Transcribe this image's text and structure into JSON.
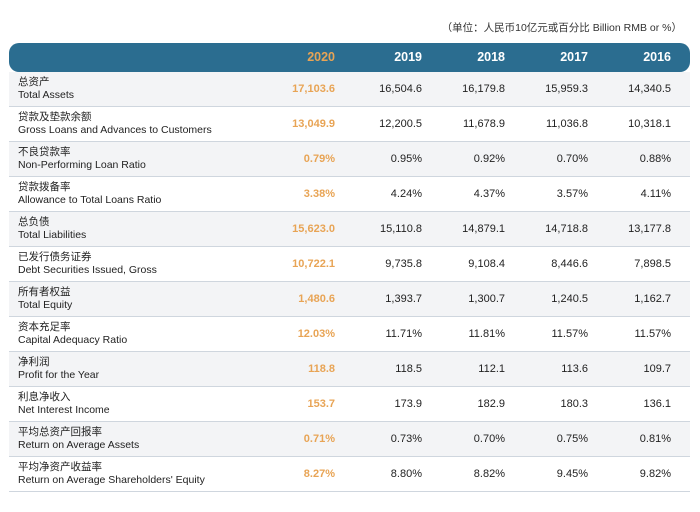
{
  "unit_note": "（单位：人民币10亿元或百分比 Billion RMB or %）",
  "header": {
    "years": [
      "2020",
      "2019",
      "2018",
      "2017",
      "2016"
    ]
  },
  "rows": [
    {
      "zh": "总资产",
      "en": "Total Assets",
      "values": [
        "17,103.6",
        "16,504.6",
        "16,179.8",
        "15,959.3",
        "14,340.5"
      ]
    },
    {
      "zh": "贷款及垫款余额",
      "en": "Gross Loans and Advances to Customers",
      "values": [
        "13,049.9",
        "12,200.5",
        "11,678.9",
        "11,036.8",
        "10,318.1"
      ]
    },
    {
      "zh": "不良贷款率",
      "en": "Non-Performing Loan Ratio",
      "values": [
        "0.79%",
        "0.95%",
        "0.92%",
        "0.70%",
        "0.88%"
      ]
    },
    {
      "zh": "贷款拨备率",
      "en": "Allowance to Total Loans Ratio",
      "values": [
        "3.38%",
        "4.24%",
        "4.37%",
        "3.57%",
        "4.11%"
      ]
    },
    {
      "zh": "总负债",
      "en": "Total Liabilities",
      "values": [
        "15,623.0",
        "15,110.8",
        "14,879.1",
        "14,718.8",
        "13,177.8"
      ]
    },
    {
      "zh": "已发行债务证券",
      "en": "Debt Securities Issued, Gross",
      "values": [
        "10,722.1",
        "9,735.8",
        "9,108.4",
        "8,446.6",
        "7,898.5"
      ]
    },
    {
      "zh": "所有者权益",
      "en": "Total Equity",
      "values": [
        "1,480.6",
        "1,393.7",
        "1,300.7",
        "1,240.5",
        "1,162.7"
      ]
    },
    {
      "zh": "资本充足率",
      "en": "Capital Adequacy Ratio",
      "values": [
        "12.03%",
        "11.71%",
        "11.81%",
        "11.57%",
        "11.57%"
      ]
    },
    {
      "zh": "净利润",
      "en": "Profit for the Year",
      "values": [
        "118.8",
        "118.5",
        "112.1",
        "113.6",
        "109.7"
      ]
    },
    {
      "zh": "利息净收入",
      "en": "Net Interest Income",
      "values": [
        "153.7",
        "173.9",
        "182.9",
        "180.3",
        "136.1"
      ]
    },
    {
      "zh": "平均总资产回报率",
      "en": "Return on Average Assets",
      "values": [
        "0.71%",
        "0.73%",
        "0.70%",
        "0.75%",
        "0.81%"
      ]
    },
    {
      "zh": "平均净资产收益率",
      "en": "Return on Average Shareholders' Equity",
      "values": [
        "8.27%",
        "8.80%",
        "8.82%",
        "9.45%",
        "9.82%"
      ]
    }
  ],
  "colors": {
    "header_bg": "#2b6d90",
    "highlight": "#e8a455",
    "row_alt": "#f3f4f6"
  }
}
